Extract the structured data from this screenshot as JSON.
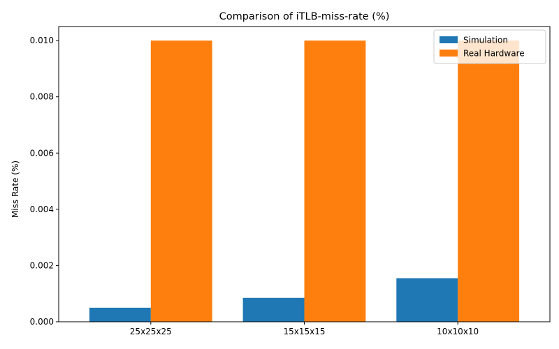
{
  "chart_data": {
    "type": "bar",
    "title": "Comparison of iTLB-miss-rate (%)",
    "xlabel": "",
    "ylabel": "Miss Rate (%)",
    "categories": [
      "25x25x25",
      "15x15x15",
      "10x10x10"
    ],
    "series": [
      {
        "name": "Simulation",
        "values": [
          0.0005,
          0.00085,
          0.00155
        ],
        "color": "#1f77b4"
      },
      {
        "name": "Real Hardware",
        "values": [
          0.01,
          0.01,
          0.01
        ],
        "color": "#ff7f0e"
      }
    ],
    "ylim": [
      0,
      0.0105
    ],
    "yticks": [
      "0.000",
      "0.002",
      "0.004",
      "0.006",
      "0.008",
      "0.010"
    ],
    "grid": false,
    "legend_position": "top-right"
  }
}
